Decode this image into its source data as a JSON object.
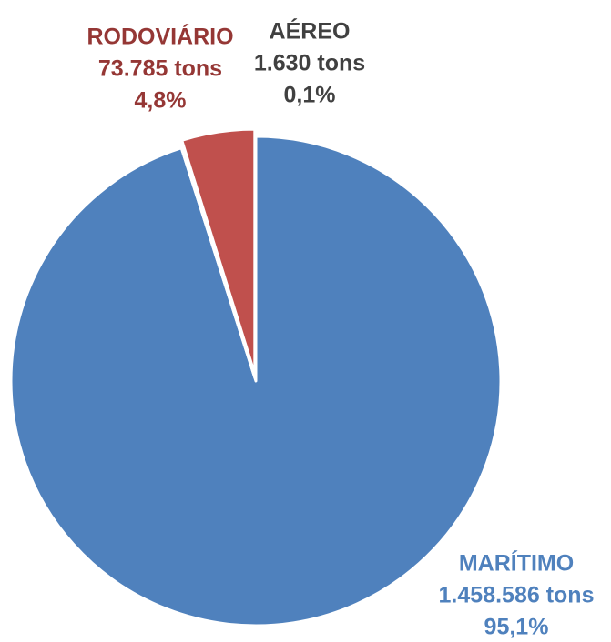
{
  "chart_data": {
    "type": "pie",
    "slices": [
      {
        "name": "MARÍTIMO",
        "value": 1458586,
        "value_label": "1.458.586 tons",
        "percent_label": "95,1%",
        "color": "#4f81bd",
        "label_color": "#4f81bd"
      },
      {
        "name": "AÉREO",
        "value": 1630,
        "value_label": "1.630 tons",
        "percent_label": "0,1%",
        "color": "#9bbb59",
        "label_color": "#404040"
      },
      {
        "name": "RODOVIÁRIO",
        "value": 73785,
        "value_label": "73.785 tons",
        "percent_label": "4,8%",
        "color": "#c0504d",
        "label_color": "#953735"
      }
    ]
  }
}
